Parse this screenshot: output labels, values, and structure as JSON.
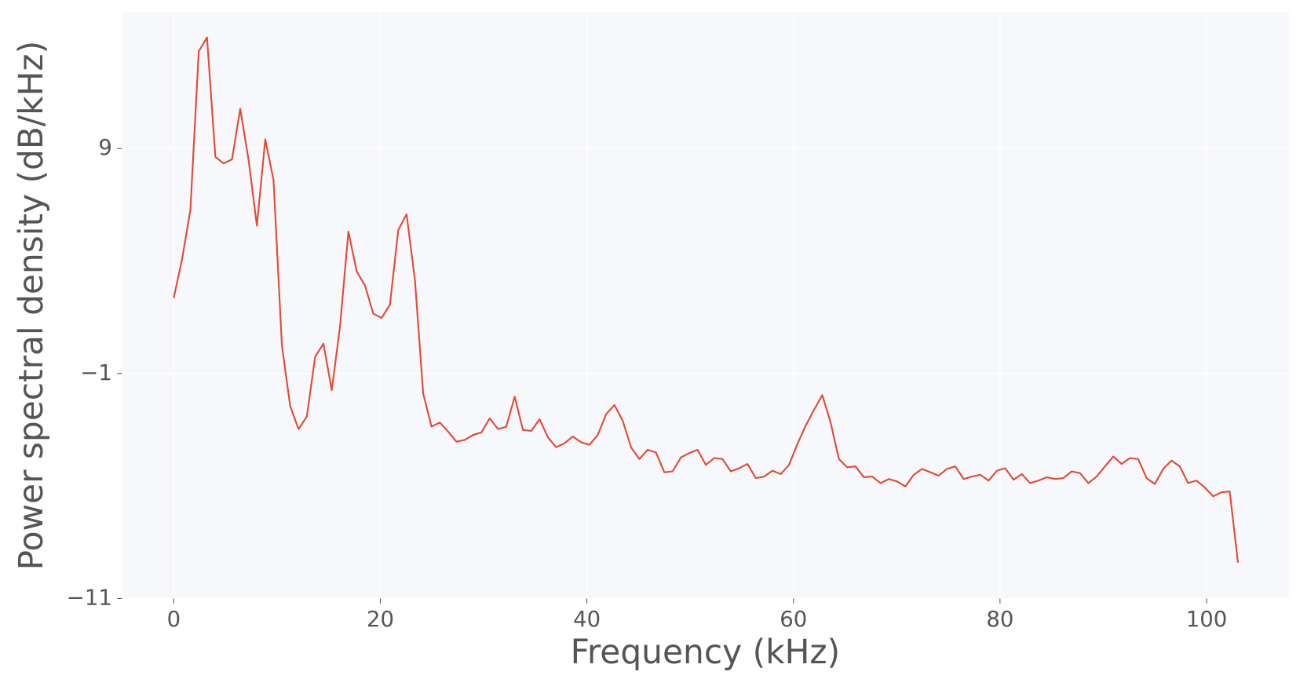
{
  "chart_data": {
    "type": "line",
    "xlabel": "Frequency (kHz)",
    "ylabel": "Power spectral density (dB/kHz)",
    "color": "#e24a33",
    "grid": true,
    "xlim": [
      -5,
      108
    ],
    "ylim": [
      -11,
      15.05
    ],
    "xticks": [
      0,
      20,
      40,
      60,
      80,
      100
    ],
    "yticks": [
      {
        "value": -11,
        "label": "−11"
      },
      {
        "value": -1,
        "label": "−1"
      },
      9
    ],
    "x": [
      0,
      0.81,
      1.61,
      2.42,
      3.22,
      4.03,
      4.83,
      5.64,
      6.44,
      7.25,
      8.05,
      8.86,
      9.66,
      10.47,
      11.27,
      12.08,
      12.88,
      13.69,
      14.49,
      15.3,
      16.1,
      16.91,
      17.71,
      18.52,
      19.32,
      20.13,
      20.93,
      21.74,
      22.54,
      23.35,
      24.15,
      24.96,
      25.76,
      26.57,
      27.37,
      28.18,
      28.98,
      29.79,
      30.59,
      31.4,
      32.2,
      33.01,
      33.81,
      34.62,
      35.42,
      36.23,
      37.03,
      37.84,
      38.64,
      39.45,
      40.25,
      41.06,
      41.86,
      42.67,
      43.47,
      44.28,
      45.08,
      45.89,
      46.69,
      47.5,
      48.3,
      49.11,
      49.91,
      50.72,
      51.52,
      52.33,
      53.13,
      53.94,
      54.74,
      55.55,
      56.35,
      57.16,
      57.96,
      58.77,
      59.57,
      60.38,
      61.18,
      61.99,
      62.79,
      63.6,
      64.4,
      65.21,
      66.01,
      66.82,
      67.62,
      68.43,
      69.23,
      70.04,
      70.84,
      71.65,
      72.45,
      73.26,
      74.06,
      74.87,
      75.67,
      76.48,
      77.28,
      78.09,
      78.89,
      79.7,
      80.5,
      81.31,
      82.11,
      82.92,
      83.72,
      84.53,
      85.33,
      86.14,
      86.94,
      87.75,
      88.55,
      89.36,
      90.16,
      90.97,
      91.77,
      92.58,
      93.38,
      94.19,
      94.99,
      95.8,
      96.6,
      97.41,
      98.21,
      99.02,
      99.82,
      100.63,
      101.43,
      102.24,
      103.04
    ],
    "values": [
      2.36,
      4.09,
      6.27,
      13.32,
      13.94,
      8.63,
      8.34,
      8.52,
      10.77,
      8.48,
      5.57,
      9.41,
      7.6,
      0.25,
      -2.44,
      -3.47,
      -2.92,
      -0.26,
      0.33,
      -1.74,
      1.1,
      5.31,
      3.54,
      2.91,
      1.66,
      1.47,
      2.06,
      5.38,
      6.08,
      3.17,
      -1.89,
      -3.36,
      -3.18,
      -3.58,
      -4.03,
      -3.95,
      -3.73,
      -3.62,
      -2.99,
      -3.47,
      -3.36,
      -2.03,
      -3.51,
      -3.55,
      -3.03,
      -3.84,
      -4.28,
      -4.1,
      -3.8,
      -4.06,
      -4.17,
      -3.73,
      -2.81,
      -2.4,
      -3.1,
      -4.28,
      -4.8,
      -4.39,
      -4.51,
      -5.39,
      -5.35,
      -4.73,
      -4.54,
      -4.39,
      -5.06,
      -4.76,
      -4.8,
      -5.35,
      -5.21,
      -5.02,
      -5.65,
      -5.58,
      -5.32,
      -5.47,
      -5.06,
      -4.14,
      -3.32,
      -2.62,
      -1.96,
      -3.18,
      -4.8,
      -5.17,
      -5.13,
      -5.61,
      -5.58,
      -5.87,
      -5.69,
      -5.8,
      -6.02,
      -5.5,
      -5.24,
      -5.39,
      -5.54,
      -5.24,
      -5.13,
      -5.69,
      -5.58,
      -5.5,
      -5.76,
      -5.32,
      -5.21,
      -5.72,
      -5.47,
      -5.87,
      -5.76,
      -5.61,
      -5.69,
      -5.65,
      -5.35,
      -5.43,
      -5.87,
      -5.58,
      -5.13,
      -4.69,
      -5.02,
      -4.76,
      -4.8,
      -5.65,
      -5.91,
      -5.24,
      -4.87,
      -5.13,
      -5.87,
      -5.76,
      -6.06,
      -6.46,
      -6.28,
      -6.24,
      -9.41
    ]
  }
}
